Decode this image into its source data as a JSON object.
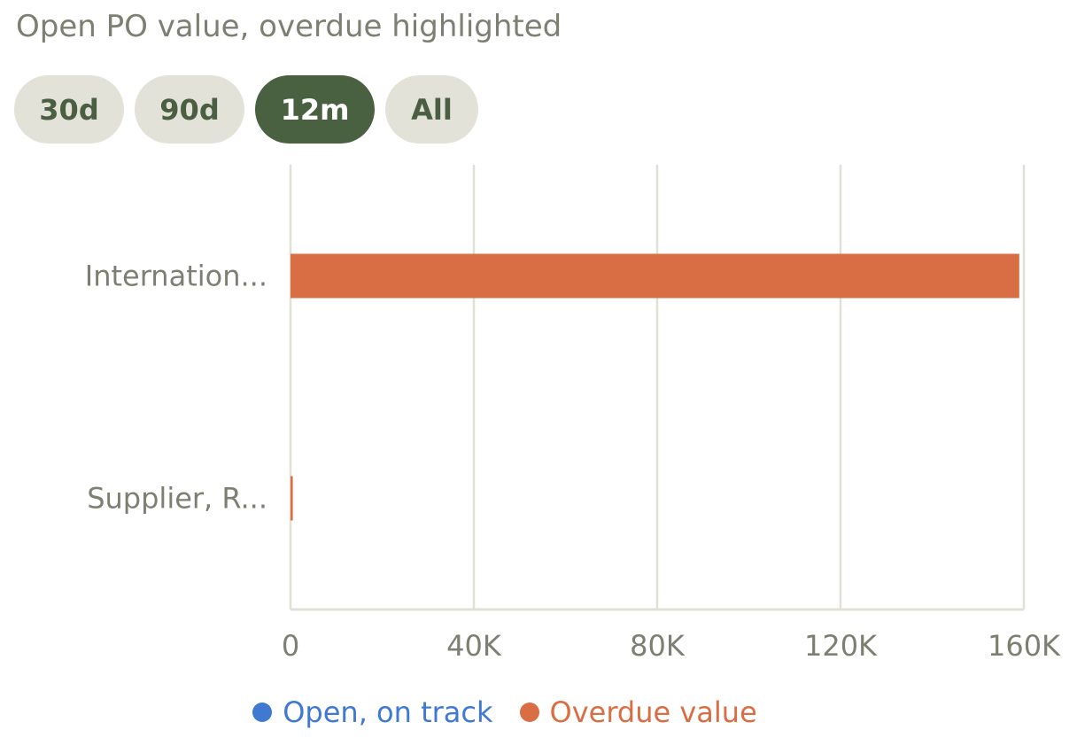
{
  "title": "Open PO value, overdue highlighted",
  "filters": {
    "options": [
      "30d",
      "90d",
      "12m",
      "All"
    ],
    "selected": "12m"
  },
  "colors": {
    "open": "#3f79d1",
    "overdue": "#d96e45",
    "grid": "#e1e0d7",
    "axis_text": "#7d7f73",
    "pill_bg": "#e3e2d9",
    "pill_active_bg": "#4a6141"
  },
  "chart_data": {
    "type": "bar",
    "orientation": "horizontal",
    "stacked": true,
    "categories": [
      "Internation...",
      "Supplier, R..."
    ],
    "series": [
      {
        "name": "Open, on track",
        "color": "#3f79d1",
        "values": [
          0,
          0
        ]
      },
      {
        "name": "Overdue value",
        "color": "#d96e45",
        "values": [
          159000,
          500
        ]
      }
    ],
    "xlim": [
      0,
      160000
    ],
    "xticks": [
      0,
      40000,
      80000,
      120000,
      160000
    ],
    "xtick_labels": [
      "0",
      "40K",
      "80K",
      "120K",
      "160K"
    ],
    "xlabel": "",
    "ylabel": "",
    "grid": true,
    "legend_position": "bottom"
  }
}
